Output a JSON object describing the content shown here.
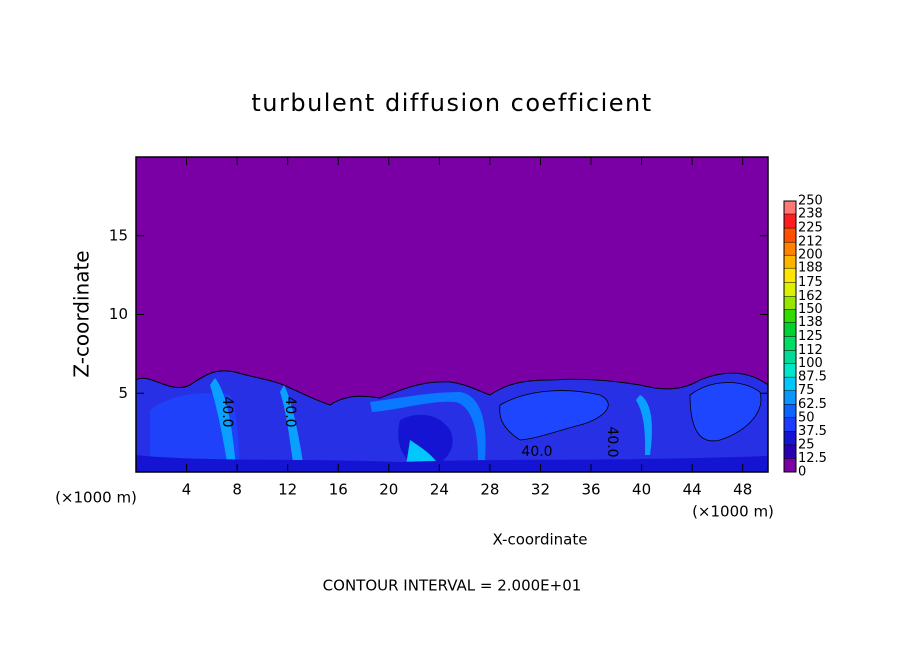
{
  "chart_data": {
    "type": "contour",
    "title": "turbulent diffusion coefficient",
    "x_label": "X-coordinate",
    "y_label": "Z-coordinate",
    "x_unit": "(×1000 m)",
    "y_unit": "(×1000 m)",
    "xlim": [
      0,
      50
    ],
    "xticks": [
      4,
      8,
      12,
      16,
      20,
      24,
      28,
      32,
      36,
      40,
      44,
      48
    ],
    "ylim": [
      0,
      20
    ],
    "yticks": [
      5,
      10,
      15
    ],
    "footer": "CONTOUR INTERVAL = 2.000E+01",
    "contour_labels": [
      {
        "value": 40,
        "label": "40.0"
      },
      {
        "value": 40,
        "label": "40.0"
      },
      {
        "value": 40,
        "label": "40.0"
      },
      {
        "value": 40,
        "label": "40.0"
      }
    ],
    "colorbar": {
      "levels": [
        0,
        12.5,
        25,
        37.5,
        50,
        62.5,
        75,
        87.5,
        100,
        112,
        125,
        138,
        150,
        162,
        175,
        188,
        200,
        212,
        225,
        238,
        250
      ],
      "colors": [
        "#7a00a6",
        "#2a00b4",
        "#1414d2",
        "#1e3cff",
        "#0a64ff",
        "#0a96ff",
        "#00c8ff",
        "#00e6c8",
        "#00dc96",
        "#00dc64",
        "#00d232",
        "#32dc00",
        "#96e600",
        "#dcf000",
        "#ffe600",
        "#ffb400",
        "#ff8200",
        "#ff5000",
        "#ff1e1e",
        "#ff7878"
      ]
    }
  }
}
